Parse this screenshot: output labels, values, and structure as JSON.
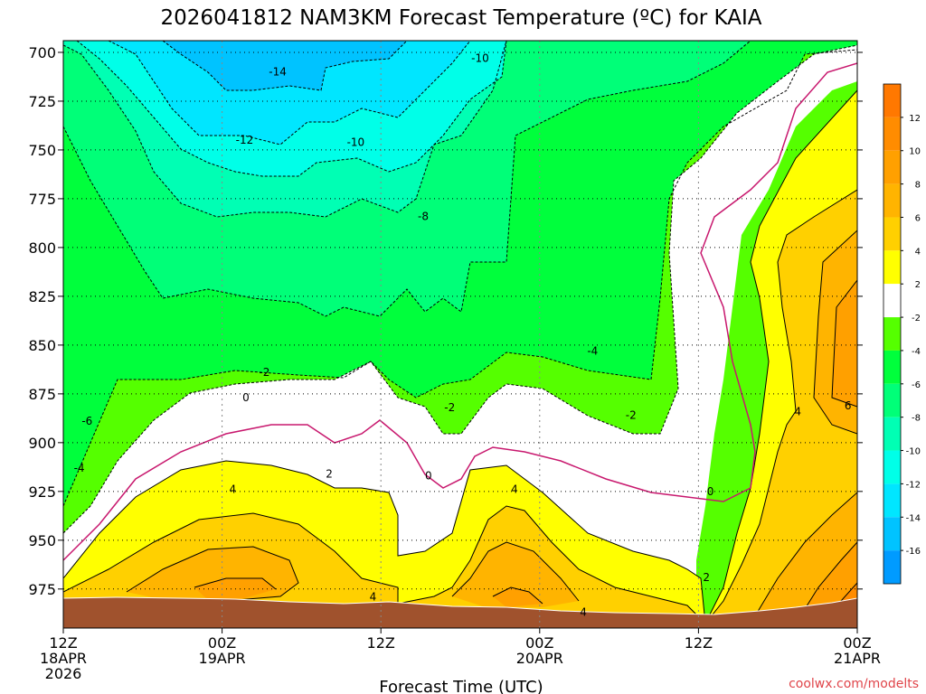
{
  "chart_data": {
    "type": "contour",
    "title": "2026041812 NAM3KM Forecast Temperature (ºC) for KAIA",
    "xlabel": "Forecast Time (UTC)",
    "ylabel": "",
    "credit": "coolwx.com/modelts",
    "x_ticks": [
      {
        "hour": 0,
        "l1": "12Z",
        "l2": "18APR",
        "l3": "2026"
      },
      {
        "hour": 12,
        "l1": "00Z",
        "l2": "19APR",
        "l3": ""
      },
      {
        "hour": 24,
        "l1": "12Z",
        "l2": "",
        "l3": ""
      },
      {
        "hour": 36,
        "l1": "00Z",
        "l2": "20APR",
        "l3": ""
      },
      {
        "hour": 48,
        "l1": "12Z",
        "l2": "",
        "l3": ""
      },
      {
        "hour": 60,
        "l1": "00Z",
        "l2": "21APR",
        "l3": ""
      }
    ],
    "xlim_hours": [
      0,
      60
    ],
    "y_ticks": [
      700,
      725,
      750,
      775,
      800,
      825,
      850,
      875,
      900,
      925,
      950,
      975
    ],
    "ylim_hpa": [
      694,
      995
    ],
    "grid": true,
    "colorbar": {
      "labels": [
        "12",
        "10",
        "8",
        "6",
        "4",
        "2",
        "-2",
        "-4",
        "-6",
        "-8",
        "-10",
        "-12",
        "-14",
        "-16"
      ],
      "colors": [
        "#ff7800",
        "#ff8c00",
        "#ffa000",
        "#ffb400",
        "#ffd000",
        "#ffff00",
        "#ffffff",
        "#55ff00",
        "#00ff3c",
        "#00ff78",
        "#00ffb4",
        "#00ffe8",
        "#00e6ff",
        "#00c3ff",
        "#009bff"
      ]
    },
    "fill_bands": [
      {
        "band": "-16 to -14",
        "color": "#00c3ff"
      },
      {
        "band": "-14 to -12",
        "color": "#00e6ff"
      },
      {
        "band": "-12 to -10",
        "color": "#00ffe8"
      },
      {
        "band": "-10 to -8",
        "color": "#00ffb4"
      },
      {
        "band": "-8 to -6",
        "color": "#00ff78"
      },
      {
        "band": "-6 to -4",
        "color": "#00ff3c"
      },
      {
        "band": "-4 to -2",
        "color": "#55ff00"
      },
      {
        "band": "-2 to 2",
        "color": "#ffffff"
      },
      {
        "band": "2 to 4",
        "color": "#ffff00"
      },
      {
        "band": "4 to 6",
        "color": "#ffd000"
      },
      {
        "band": "6 to 8",
        "color": "#ffb400"
      },
      {
        "band": "8 to 10",
        "color": "#ffa000"
      },
      {
        "band": "10 to 12",
        "color": "#ff8c00"
      }
    ],
    "contour_labels": [
      {
        "text": "-14",
        "hour": 16.2,
        "hpa": 710
      },
      {
        "text": "-12",
        "hour": 13.7,
        "hpa": 745
      },
      {
        "text": "-10",
        "hour": 22.1,
        "hpa": 746
      },
      {
        "text": "-10",
        "hour": 31.5,
        "hpa": 703
      },
      {
        "text": "-8",
        "hour": 27.2,
        "hpa": 784
      },
      {
        "text": "-6",
        "hour": 1.8,
        "hpa": 889
      },
      {
        "text": "-4",
        "hour": 1.2,
        "hpa": 913
      },
      {
        "text": "-4",
        "hour": 40.0,
        "hpa": 853
      },
      {
        "text": "-2",
        "hour": 15.2,
        "hpa": 864
      },
      {
        "text": "-2",
        "hour": 29.2,
        "hpa": 882
      },
      {
        "text": "-2",
        "hour": 42.9,
        "hpa": 886
      },
      {
        "text": "0",
        "hour": 13.8,
        "hpa": 877
      },
      {
        "text": "0",
        "hour": 27.6,
        "hpa": 917
      },
      {
        "text": "0",
        "hour": 48.9,
        "hpa": 925
      },
      {
        "text": "2",
        "hour": 20.1,
        "hpa": 916
      },
      {
        "text": "2",
        "hour": 48.6,
        "hpa": 969
      },
      {
        "text": "4",
        "hour": 12.8,
        "hpa": 924
      },
      {
        "text": "4",
        "hour": 34.1,
        "hpa": 924
      },
      {
        "text": "4",
        "hour": 23.4,
        "hpa": 979
      },
      {
        "text": "4",
        "hour": 39.3,
        "hpa": 987
      },
      {
        "text": "4",
        "hour": 55.5,
        "hpa": 884
      },
      {
        "text": "6",
        "hour": 59.3,
        "hpa": 881
      }
    ],
    "surface_color": "#a0522d",
    "zero_line_color": "#c8186e"
  }
}
